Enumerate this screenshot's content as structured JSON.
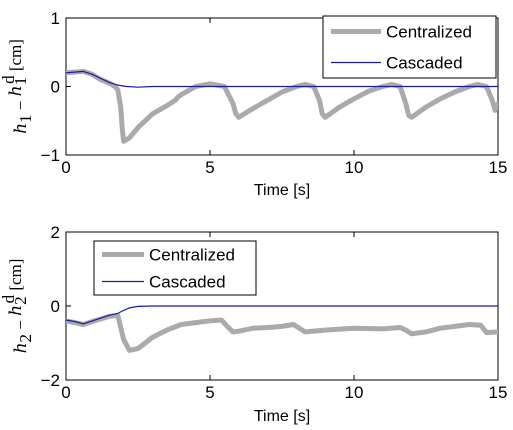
{
  "chart_data": [
    {
      "type": "line",
      "xlabel": "Time [s]",
      "ylabel": "h1 − h1d [cm]",
      "ylabel_parts": [
        "h",
        "1",
        " − ",
        "h",
        "1",
        "d",
        " [cm]"
      ],
      "xlim": [
        0,
        15
      ],
      "ylim": [
        -1,
        1
      ],
      "xticks": [
        0,
        5,
        10,
        15
      ],
      "yticks": [
        -1,
        0,
        1
      ],
      "xtick_labels": [
        "0",
        "5",
        "10",
        "15"
      ],
      "ytick_labels": [
        "−1",
        "0",
        "1"
      ],
      "grid": false,
      "legend_position": "top-right",
      "series": [
        {
          "name": "Centralized",
          "color": "#aaaaaa",
          "x": [
            0,
            0.3,
            0.6,
            0.9,
            1.2,
            1.5,
            1.7,
            1.8,
            1.9,
            1.95,
            2.0,
            2.2,
            2.5,
            3.0,
            3.5,
            3.8,
            3.9,
            4.0,
            4.5,
            5.0,
            5.5,
            5.8,
            5.9,
            6.0,
            6.5,
            7.0,
            7.5,
            8.0,
            8.3,
            8.6,
            8.8,
            8.9,
            9.0,
            9.5,
            10.0,
            10.5,
            11.0,
            11.3,
            11.6,
            11.8,
            11.9,
            12.0,
            12.5,
            13.0,
            13.5,
            14.0,
            14.3,
            14.6,
            14.8,
            14.9,
            15.0
          ],
          "y": [
            0.2,
            0.21,
            0.22,
            0.18,
            0.1,
            0.05,
            0.0,
            -0.05,
            -0.3,
            -0.6,
            -0.8,
            -0.75,
            -0.6,
            -0.4,
            -0.28,
            -0.2,
            -0.15,
            -0.12,
            0.0,
            0.04,
            0.0,
            -0.25,
            -0.4,
            -0.45,
            -0.32,
            -0.2,
            -0.08,
            0.0,
            0.03,
            0.0,
            -0.2,
            -0.4,
            -0.45,
            -0.3,
            -0.18,
            -0.07,
            0.0,
            0.03,
            0.0,
            -0.25,
            -0.42,
            -0.45,
            -0.3,
            -0.18,
            -0.08,
            0.0,
            0.03,
            0.0,
            -0.2,
            -0.35,
            -0.25
          ]
        },
        {
          "name": "Cascaded",
          "color": "#1a1aa8",
          "x": [
            0,
            0.3,
            0.6,
            0.9,
            1.2,
            1.5,
            1.8,
            2.1,
            2.5,
            3.0,
            4.0,
            6.0,
            8.0,
            10.0,
            12.0,
            15.0
          ],
          "y": [
            0.2,
            0.21,
            0.22,
            0.18,
            0.12,
            0.06,
            0.02,
            0.0,
            -0.01,
            0.0,
            0.0,
            0.0,
            0.0,
            0.0,
            0.0,
            0.0
          ]
        }
      ]
    },
    {
      "type": "line",
      "xlabel": "Time [s]",
      "ylabel": "h2 − h2d [cm]",
      "ylabel_parts": [
        "h",
        "2",
        " − ",
        "h",
        "2",
        "d",
        " [cm]"
      ],
      "xlim": [
        0,
        15
      ],
      "ylim": [
        -2,
        2
      ],
      "xticks": [
        0,
        5,
        10,
        15
      ],
      "yticks": [
        -2,
        0,
        2
      ],
      "xtick_labels": [
        "0",
        "5",
        "10",
        "15"
      ],
      "ytick_labels": [
        "−2",
        "0",
        "2"
      ],
      "grid": false,
      "legend_position": "top-left",
      "series": [
        {
          "name": "Centralized",
          "color": "#aaaaaa",
          "x": [
            0,
            0.3,
            0.6,
            1.0,
            1.5,
            1.8,
            2.0,
            2.2,
            2.5,
            3.0,
            3.5,
            4.0,
            4.5,
            5.0,
            5.4,
            5.6,
            5.8,
            6.0,
            6.5,
            7.0,
            7.5,
            7.9,
            8.1,
            8.3,
            9.0,
            10.0,
            11.0,
            11.6,
            11.8,
            12.0,
            12.5,
            13.0,
            13.5,
            14.0,
            14.4,
            14.6,
            15.0
          ],
          "y": [
            -0.4,
            -0.45,
            -0.5,
            -0.4,
            -0.28,
            -0.25,
            -0.9,
            -1.2,
            -1.15,
            -0.85,
            -0.65,
            -0.5,
            -0.45,
            -0.4,
            -0.38,
            -0.55,
            -0.7,
            -0.68,
            -0.6,
            -0.58,
            -0.55,
            -0.5,
            -0.6,
            -0.7,
            -0.65,
            -0.6,
            -0.62,
            -0.58,
            -0.65,
            -0.75,
            -0.7,
            -0.6,
            -0.55,
            -0.5,
            -0.52,
            -0.72,
            -0.7
          ]
        },
        {
          "name": "Cascaded",
          "color": "#1a1aa8",
          "x": [
            0,
            0.3,
            0.6,
            1.0,
            1.5,
            1.8,
            2.0,
            2.2,
            2.5,
            3.0,
            4.0,
            6.0,
            8.0,
            10.0,
            12.0,
            15.0
          ],
          "y": [
            -0.38,
            -0.42,
            -0.48,
            -0.38,
            -0.25,
            -0.2,
            -0.12,
            -0.05,
            -0.01,
            0.0,
            0.0,
            0.0,
            0.0,
            0.0,
            0.0,
            0.0
          ]
        }
      ]
    }
  ]
}
